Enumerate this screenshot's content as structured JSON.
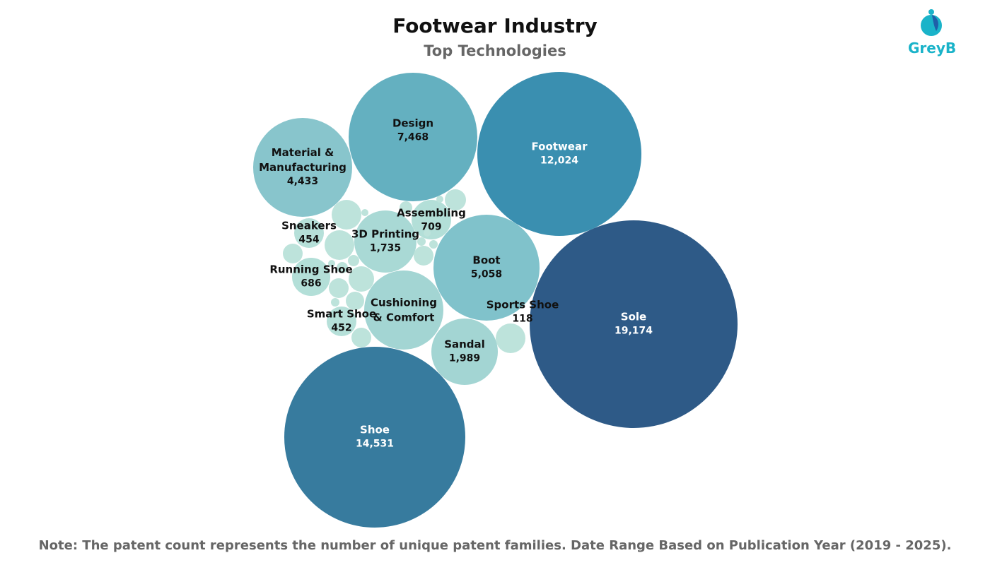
{
  "header": {
    "title": "Footwear Industry",
    "subtitle": "Top Technologies"
  },
  "logo": {
    "text": "GreyB",
    "color": "#1ab3c9"
  },
  "footer": {
    "note": "Note: The patent count represents the number of unique patent families. Date Range Based on Publication Year (2019 - 2025)."
  },
  "chart_data": {
    "type": "bubble",
    "title": "Footwear Industry",
    "subtitle": "Top Technologies",
    "items": [
      {
        "label": "Sole",
        "value": 19174,
        "display": "19,174",
        "color": "#2e5a87",
        "text_color": "#ffffff"
      },
      {
        "label": "Shoe",
        "value": 14531,
        "display": "14,531",
        "color": "#377b9e",
        "text_color": "#ffffff"
      },
      {
        "label": "Footwear",
        "value": 12024,
        "display": "12,024",
        "color": "#3a8fb0",
        "text_color": "#ffffff"
      },
      {
        "label": "Design",
        "value": 7468,
        "display": "7,468",
        "color": "#64b0c0",
        "text_color": "#111111"
      },
      {
        "label": "Boot",
        "value": 5058,
        "display": "5,058",
        "color": "#80c2cb",
        "text_color": "#111111"
      },
      {
        "label": "Material & Manufacturing",
        "value": 4433,
        "display": "4,433",
        "color": "#88c5cc",
        "text_color": "#111111"
      },
      {
        "label": "Cushioning & Comfort",
        "value": null,
        "display": "",
        "color": "#a3d5d3",
        "text_color": "#111111"
      },
      {
        "label": "Sandal",
        "value": 1989,
        "display": "1,989",
        "color": "#a3d5d3",
        "text_color": "#111111"
      },
      {
        "label": "3D Printing",
        "value": 1735,
        "display": "1,735",
        "color": "#a9d9d5",
        "text_color": "#111111"
      },
      {
        "label": "Assembling",
        "value": 709,
        "display": "709",
        "color": "#b3dfd8",
        "text_color": "#111111"
      },
      {
        "label": "Running Shoe",
        "value": 686,
        "display": "686",
        "color": "#b3dfd8",
        "text_color": "#111111"
      },
      {
        "label": "Sneakers",
        "value": 454,
        "display": "454",
        "color": "#b6e0d9",
        "text_color": "#111111"
      },
      {
        "label": "Smart Shoe",
        "value": 452,
        "display": "452",
        "color": "#b6e0d9",
        "text_color": "#111111"
      },
      {
        "label": "Sports Shoe",
        "value": 118,
        "display": "118",
        "color": "#bde3db",
        "text_color": "#111111"
      }
    ],
    "minor_color": "#bde3db"
  }
}
